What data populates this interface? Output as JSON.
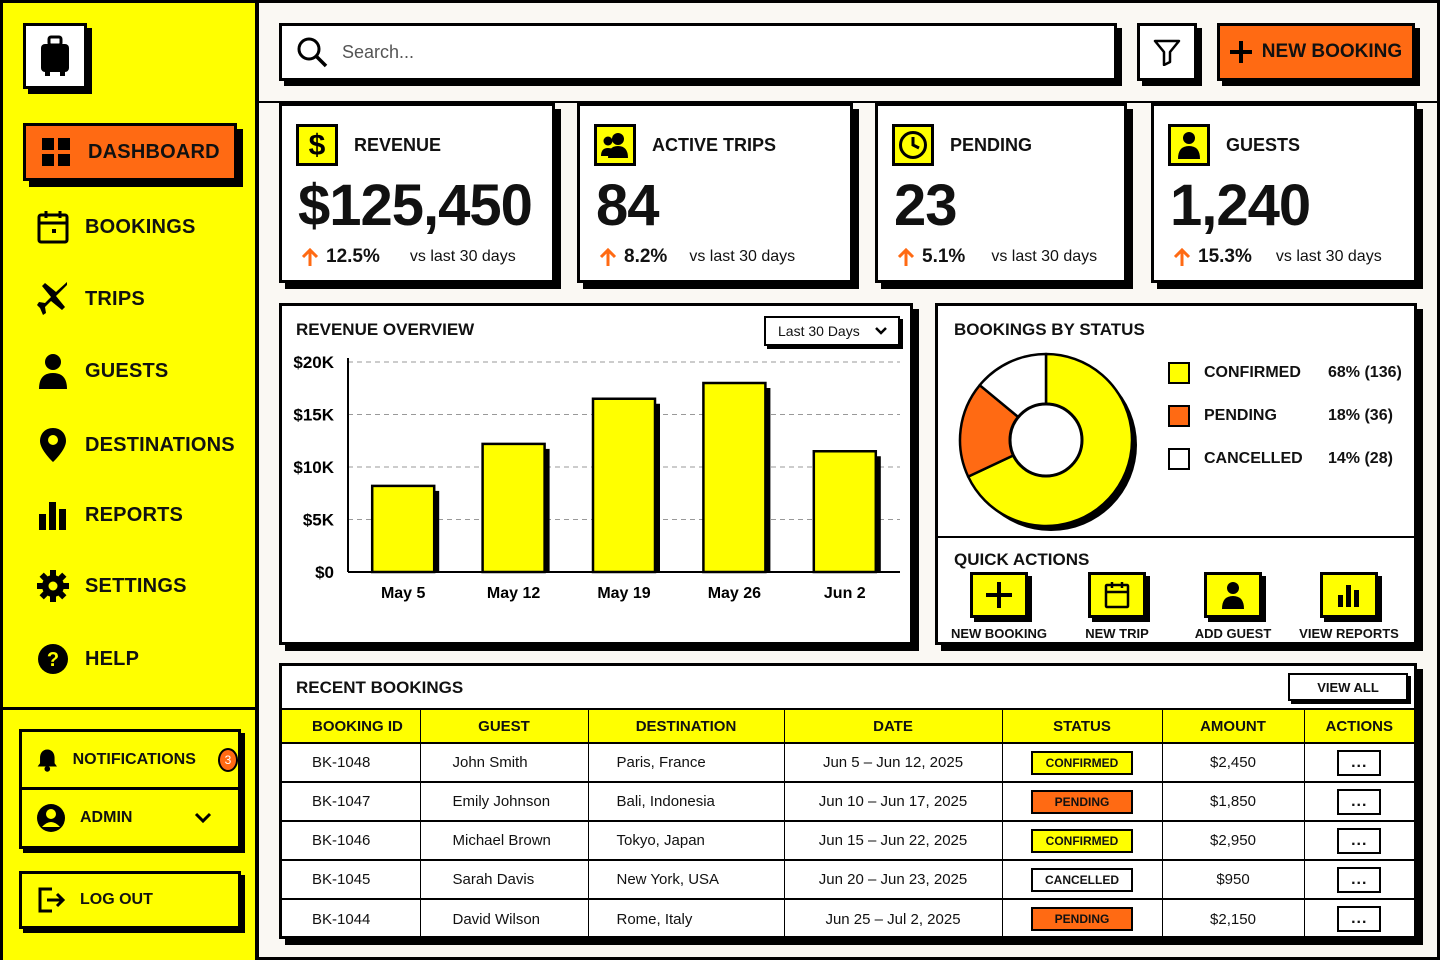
{
  "sidebar": {
    "nav": [
      {
        "label": "DASHBOARD",
        "icon": "grid-icon"
      },
      {
        "label": "BOOKINGS",
        "icon": "calendar-icon"
      },
      {
        "label": "TRIPS",
        "icon": "airplane-icon"
      },
      {
        "label": "GUESTS",
        "icon": "person-icon"
      },
      {
        "label": "DESTINATIONS",
        "icon": "location-pin-icon"
      },
      {
        "label": "REPORTS",
        "icon": "bar-chart-icon"
      },
      {
        "label": "SETTINGS",
        "icon": "gear-icon"
      },
      {
        "label": "HELP",
        "icon": "help-icon"
      }
    ],
    "notifications": {
      "label": "NOTIFICATIONS",
      "count": "3"
    },
    "user": {
      "label": "ADMIN"
    },
    "logout": {
      "label": "LOG OUT"
    }
  },
  "search": {
    "placeholder": "Search..."
  },
  "toolbar": {
    "new_booking_label": "NEW BOOKING"
  },
  "stats": [
    {
      "title": "REVENUE",
      "value": "$125,450",
      "change": "12.5%",
      "compare": "vs last 30 days",
      "icon": "dollar-icon"
    },
    {
      "title": "ACTIVE TRIPS",
      "value": "84",
      "change": "8.2%",
      "compare": "vs last 30 days",
      "icon": "people-icon"
    },
    {
      "title": "PENDING",
      "value": "23",
      "change": "5.1%",
      "compare": "vs last 30 days",
      "icon": "clock-icon"
    },
    {
      "title": "GUESTS",
      "value": "1,240",
      "change": "15.3%",
      "compare": "vs last 30 days",
      "icon": "person-icon"
    }
  ],
  "revenue_overview": {
    "title": "REVENUE OVERVIEW",
    "range_select": "Last 30 Days"
  },
  "bookings_by_status": {
    "title": "BOOKINGS BY STATUS",
    "legend": [
      {
        "name": "CONFIRMED",
        "value": "68% (136)"
      },
      {
        "name": "PENDING",
        "value": "18% (36)"
      },
      {
        "name": "CANCELLED",
        "value": "14% (28)"
      }
    ]
  },
  "quick_actions": {
    "title": "QUICK ACTIONS",
    "items": [
      {
        "label": "NEW BOOKING",
        "icon": "plus-icon"
      },
      {
        "label": "NEW TRIP",
        "icon": "calendar-icon"
      },
      {
        "label": "ADD GUEST",
        "icon": "person-icon"
      },
      {
        "label": "VIEW REPORTS",
        "icon": "bar-chart-icon"
      }
    ]
  },
  "recent_bookings": {
    "title": "RECENT BOOKINGS",
    "view_all": "VIEW ALL",
    "columns": [
      "BOOKING ID",
      "GUEST",
      "DESTINATION",
      "DATE",
      "STATUS",
      "AMOUNT",
      "ACTIONS"
    ],
    "rows": [
      {
        "id": "BK-1048",
        "guest": "John Smith",
        "destination": "Paris, France",
        "date": "Jun 5 – Jun 12, 2025",
        "status": "CONFIRMED",
        "amount": "$2,450"
      },
      {
        "id": "BK-1047",
        "guest": "Emily Johnson",
        "destination": "Bali, Indonesia",
        "date": "Jun 10 – Jun 17, 2025",
        "status": "PENDING",
        "amount": "$1,850"
      },
      {
        "id": "BK-1046",
        "guest": "Michael Brown",
        "destination": "Tokyo, Japan",
        "date": "Jun 15 – Jun 22, 2025",
        "status": "CONFIRMED",
        "amount": "$2,950"
      },
      {
        "id": "BK-1045",
        "guest": "Sarah Davis",
        "destination": "New York, USA",
        "date": "Jun 20 – Jun 23, 2025",
        "status": "CANCELLED",
        "amount": "$950"
      },
      {
        "id": "BK-1044",
        "guest": "David Wilson",
        "destination": "Rome, Italy",
        "date": "Jun 25 – Jul 2, 2025",
        "status": "PENDING",
        "amount": "$2,150"
      }
    ],
    "actions_label": "..."
  },
  "colors": {
    "accent": "#ffff00",
    "brand_orange": "#ff6a13",
    "ink": "#000000"
  },
  "chart_data": [
    {
      "type": "bar",
      "title": "REVENUE OVERVIEW",
      "categories": [
        "May 5",
        "May 12",
        "May 19",
        "May 26",
        "Jun 2"
      ],
      "values": [
        8200,
        12200,
        16500,
        18000,
        11500
      ],
      "ylim": [
        0,
        20000
      ],
      "yticks": [
        "$0",
        "$5K",
        "$10K",
        "$15K",
        "$20K"
      ],
      "grid": true
    },
    {
      "type": "pie",
      "title": "BOOKINGS BY STATUS",
      "labels": [
        "CONFIRMED",
        "PENDING",
        "CANCELLED"
      ],
      "values": [
        136,
        36,
        28
      ],
      "colors": [
        "#ffff00",
        "#ff6a13",
        "#ffffff"
      ],
      "donut": true
    }
  ]
}
